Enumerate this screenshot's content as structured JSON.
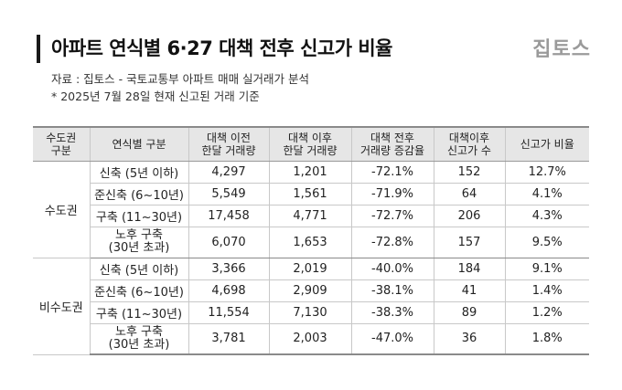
{
  "header": {
    "title": "아파트 연식별 6·27 대책 전후 신고가 비율",
    "logo": "집토스",
    "source": "자료 : 집토스 - 국토교통부 아파트 매매 실거래가 분석",
    "note": "* 2025년 7월 28일 현재 신고된 거래 기준"
  },
  "table": {
    "headers": {
      "region": [
        "수도권",
        "구분"
      ],
      "age": [
        "연식별 구분"
      ],
      "before": [
        "대책 이전",
        "한달 거래량"
      ],
      "after": [
        "대책 이후",
        "한달 거래량"
      ],
      "change": [
        "대책 전후",
        "거래량 증감율"
      ],
      "new_high": [
        "대책이후",
        "신고가 수"
      ],
      "ratio": [
        "신고가 비율"
      ]
    },
    "groups": [
      {
        "region": "수도권",
        "rows": [
          {
            "age": [
              "신축 (5년 이하)"
            ],
            "before": "4,297",
            "after": "1,201",
            "change": "-72.1%",
            "new_high": "152",
            "ratio": "12.7%"
          },
          {
            "age": [
              "준신축 (6~10년)"
            ],
            "before": "5,549",
            "after": "1,561",
            "change": "-71.9%",
            "new_high": "64",
            "ratio": "4.1%"
          },
          {
            "age": [
              "구축 (11~30년)"
            ],
            "before": "17,458",
            "after": "4,771",
            "change": "-72.7%",
            "new_high": "206",
            "ratio": "4.3%"
          },
          {
            "age": [
              "노후 구축",
              "(30년 초과)"
            ],
            "before": "6,070",
            "after": "1,653",
            "change": "-72.8%",
            "new_high": "157",
            "ratio": "9.5%"
          }
        ]
      },
      {
        "region": "비수도권",
        "rows": [
          {
            "age": [
              "신축 (5년 이하)"
            ],
            "before": "3,366",
            "after": "2,019",
            "change": "-40.0%",
            "new_high": "184",
            "ratio": "9.1%"
          },
          {
            "age": [
              "준신축 (6~10년)"
            ],
            "before": "4,698",
            "after": "2,909",
            "change": "-38.1%",
            "new_high": "41",
            "ratio": "1.4%"
          },
          {
            "age": [
              "구축 (11~30년)"
            ],
            "before": "11,554",
            "after": "7,130",
            "change": "-38.3%",
            "new_high": "89",
            "ratio": "1.2%"
          },
          {
            "age": [
              "노후 구축",
              "(30년 초과)"
            ],
            "before": "3,781",
            "after": "2,003",
            "change": "-47.0%",
            "new_high": "36",
            "ratio": "1.8%"
          }
        ]
      }
    ]
  }
}
